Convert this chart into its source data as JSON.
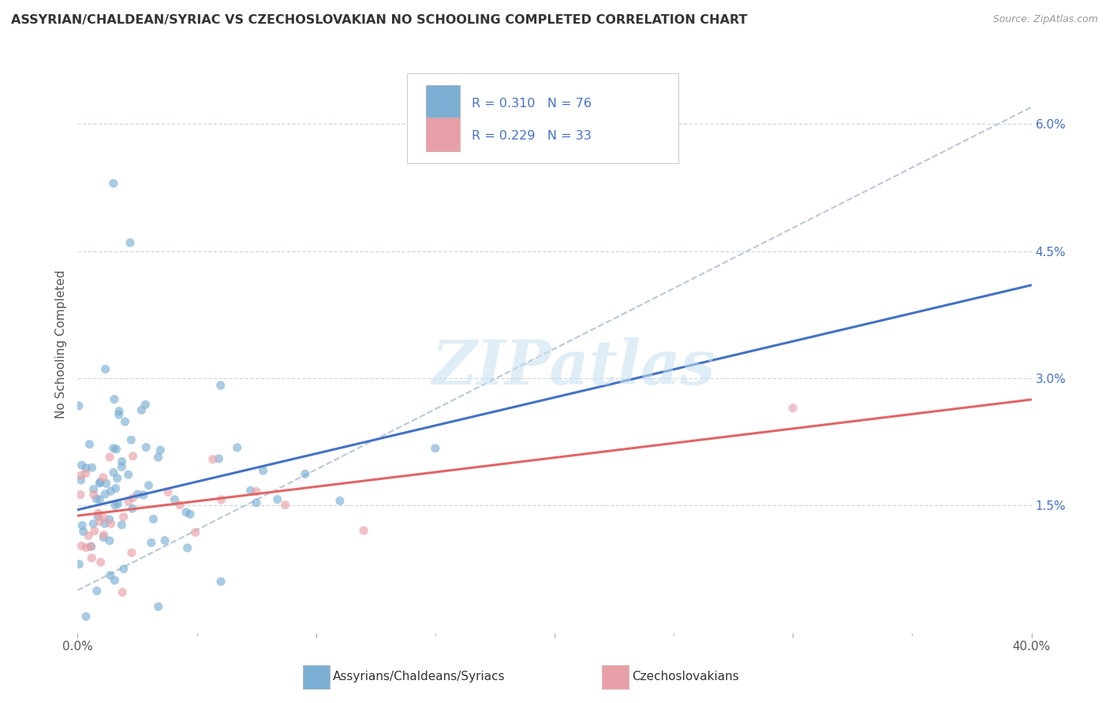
{
  "title": "ASSYRIAN/CHALDEAN/SYRIAC VS CZECHOSLOVAKIAN NO SCHOOLING COMPLETED CORRELATION CHART",
  "source": "Source: ZipAtlas.com",
  "ylabel": "No Schooling Completed",
  "xlim": [
    0.0,
    40.0
  ],
  "ylim": [
    0.0,
    6.8
  ],
  "yticks_right": [
    1.5,
    3.0,
    4.5,
    6.0
  ],
  "blue_R": 0.31,
  "blue_N": 76,
  "pink_R": 0.229,
  "pink_N": 33,
  "blue_line_color": "#4472c4",
  "pink_line_color": "#e06666",
  "blue_scatter_color": "#7bafd4",
  "pink_scatter_color": "#e8a0a8",
  "dashed_line_color": "#b8c8d8",
  "grid_color": "#d0d8e0",
  "legend_label_blue": "Assyrians/Chaldeans/Syriacs",
  "legend_label_pink": "Czechoslovakians",
  "watermark": "ZIPatlas",
  "background_color": "#ffffff",
  "blue_line_x0": 0.0,
  "blue_line_y0": 1.45,
  "blue_line_x1": 40.0,
  "blue_line_y1": 4.1,
  "pink_line_x0": 0.0,
  "pink_line_y0": 1.38,
  "pink_line_x1": 40.0,
  "pink_line_y1": 2.75,
  "dash_line_x0": 0.0,
  "dash_line_y0": 0.5,
  "dash_line_x1": 40.0,
  "dash_line_y1": 6.2
}
